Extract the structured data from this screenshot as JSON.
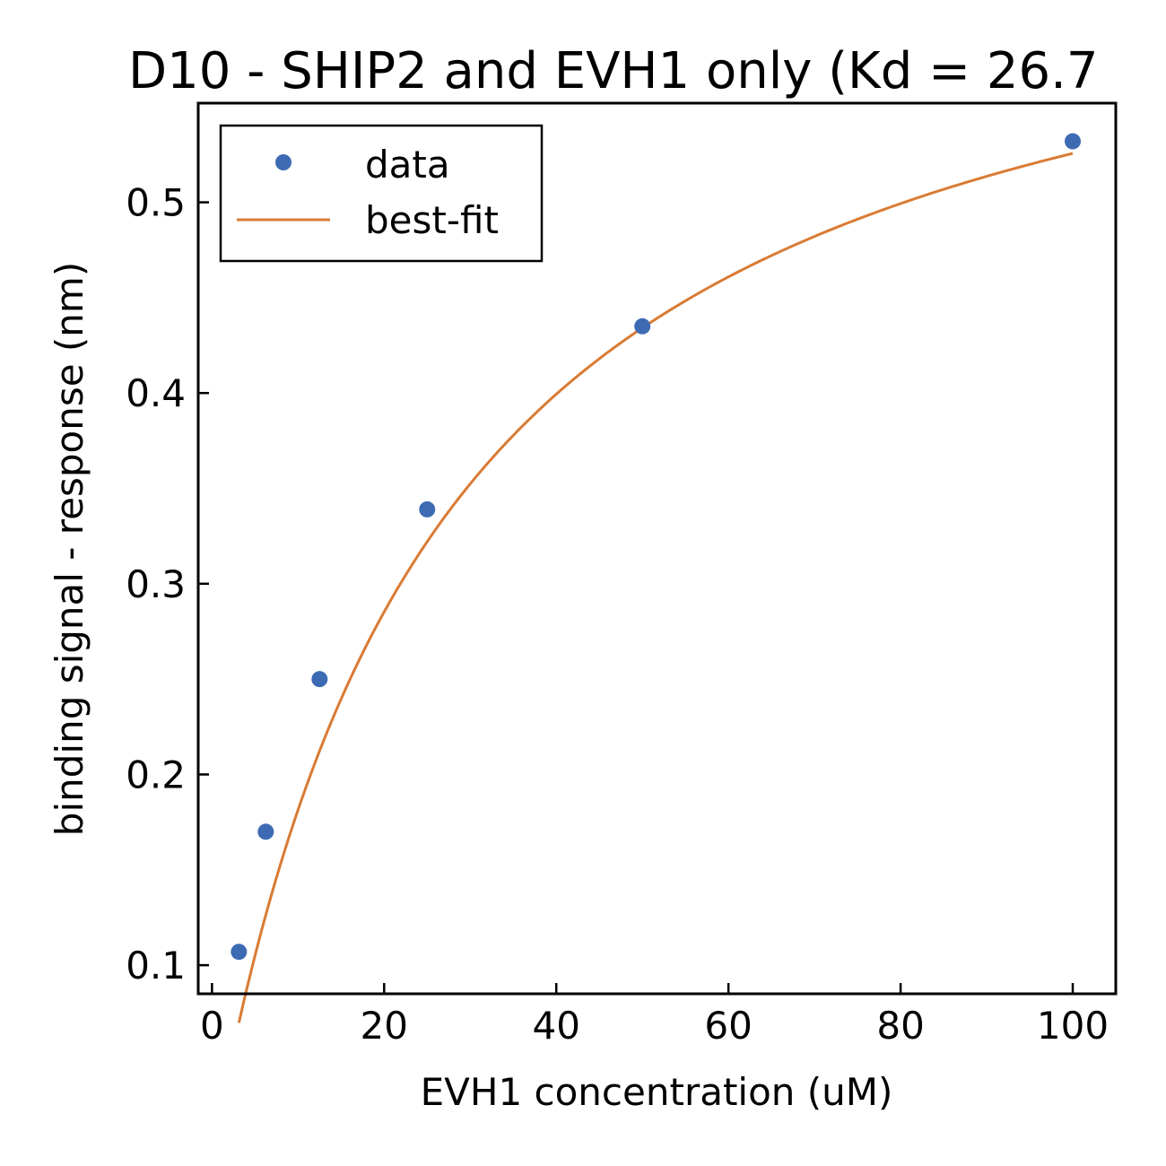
{
  "chart_data": {
    "type": "scatter",
    "title": "D10 - SHIP2 and EVH1 only (Kd = 26.7",
    "xlabel": "EVH1 concentration (uM)",
    "ylabel": "binding signal - response (nm)",
    "xlim": [
      -1.6,
      105
    ],
    "ylim": [
      0.085,
      0.552
    ],
    "xticks": [
      0,
      20,
      40,
      60,
      80,
      100
    ],
    "xtick_labels": [
      "0",
      "20",
      "40",
      "60",
      "80",
      "100"
    ],
    "yticks": [
      0.1,
      0.2,
      0.3,
      0.4,
      0.5
    ],
    "ytick_labels": [
      "0.1",
      "0.2",
      "0.3",
      "0.4",
      "0.5"
    ],
    "legend_position": "upper-left",
    "grid": false,
    "series": [
      {
        "name": "data",
        "kind": "points",
        "color": "#3d6bb3",
        "x": [
          3.125,
          6.25,
          12.5,
          25,
          50,
          100
        ],
        "y": [
          0.107,
          0.17,
          0.25,
          0.339,
          0.435,
          0.532
        ]
      },
      {
        "name": "best-fit",
        "kind": "line",
        "color": "#d97b34",
        "model": "one-site saturation binding",
        "params": {
          "Bmax": 0.666,
          "Kd": 26.7
        },
        "x_range": [
          3.125,
          100
        ]
      }
    ]
  }
}
